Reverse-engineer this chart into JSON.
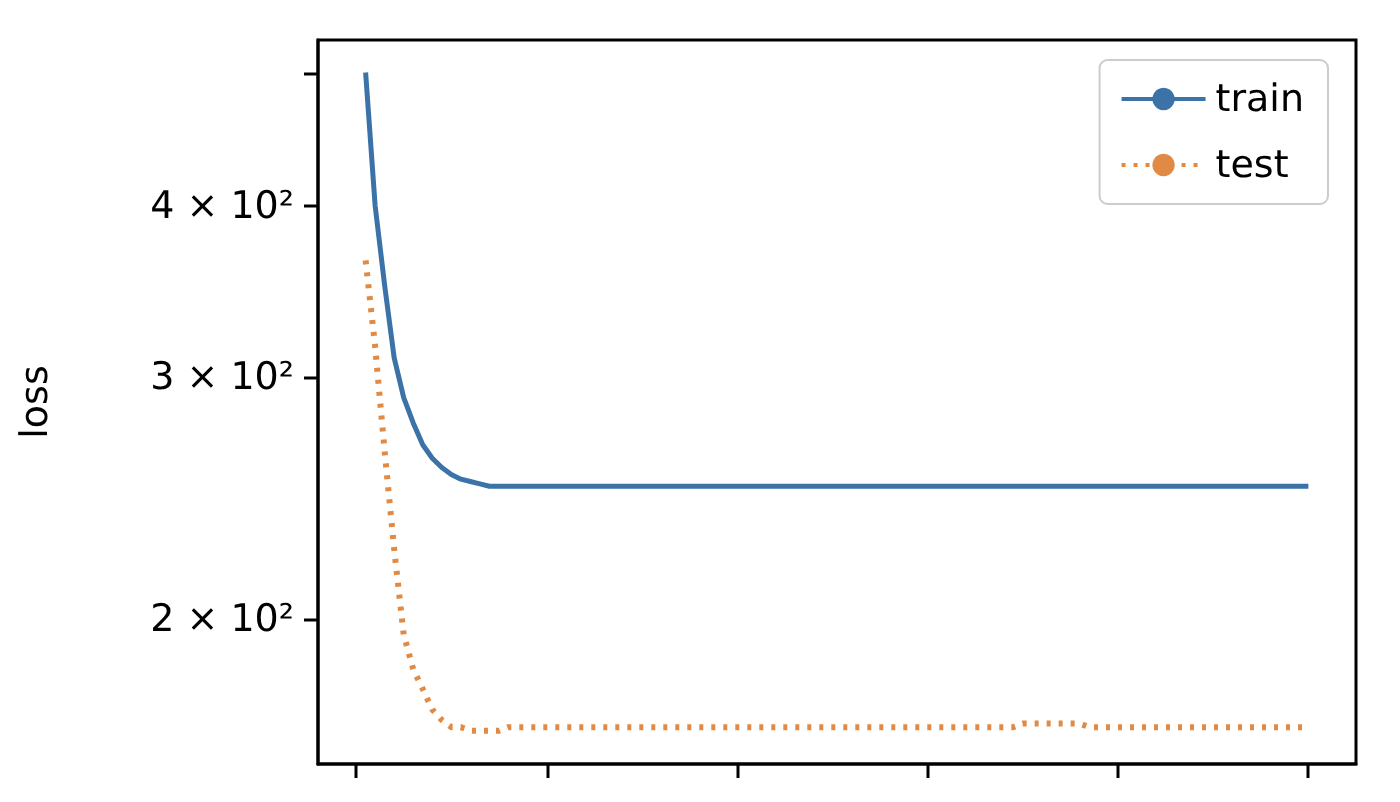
{
  "chart_data": {
    "type": "line",
    "ylabel": "loss",
    "categories": [
      null,
      null,
      null,
      null,
      null,
      null,
      null,
      null,
      null,
      null,
      null,
      null,
      null,
      null,
      null,
      null,
      null,
      null,
      null,
      null,
      null,
      null,
      null,
      null,
      null,
      null,
      null,
      null,
      null,
      null,
      null,
      null,
      null,
      null,
      null,
      null,
      null,
      null,
      null,
      null,
      null,
      null,
      null,
      null,
      null,
      null,
      null,
      null,
      null,
      null,
      null,
      null,
      null,
      null,
      null,
      null,
      null,
      null,
      null,
      null,
      null,
      null,
      null,
      null,
      null,
      null,
      null,
      null,
      null,
      null,
      null,
      null,
      null,
      null,
      null,
      null,
      null,
      null,
      null,
      null,
      null,
      null,
      null,
      null,
      null,
      null,
      null,
      null,
      null,
      null,
      null,
      null,
      null,
      null,
      null,
      null,
      null,
      null,
      null,
      null,
      null,
      null,
      null,
      null,
      null,
      null,
      null,
      null,
      null,
      null
    ],
    "series": [
      {
        "name": "train",
        "color": "#3b72a8",
        "line_style": "solid",
        "values": [
          null,
          null,
          null,
          null,
          null,
          500,
          400,
          350,
          310,
          290,
          278,
          268,
          262,
          258,
          255,
          253,
          252,
          251,
          250,
          250,
          250,
          250,
          250,
          250,
          250,
          250,
          250,
          250,
          250,
          250,
          250,
          250,
          250,
          250,
          250,
          250,
          250,
          250,
          250,
          250,
          250,
          250,
          250,
          250,
          250,
          250,
          250,
          250,
          250,
          250,
          250,
          250,
          250,
          250,
          250,
          250,
          250,
          250,
          250,
          250,
          250,
          250,
          250,
          250,
          250,
          250,
          250,
          250,
          250,
          250,
          250,
          250,
          250,
          250,
          250,
          250,
          250,
          250,
          250,
          250,
          250,
          250,
          250,
          250,
          250,
          250,
          250,
          250,
          250,
          250,
          250,
          250,
          250,
          250,
          250,
          250,
          250,
          250,
          250,
          250,
          250,
          250,
          250,
          250,
          250,
          null,
          null,
          null,
          null,
          null
        ]
      },
      {
        "name": "test",
        "color": "#e08a45",
        "line_style": "dotted",
        "values": [
          null,
          null,
          null,
          null,
          null,
          365,
          316,
          265,
          225,
          195,
          184,
          178,
          172,
          169,
          167,
          167,
          166,
          166,
          166,
          166,
          167,
          167,
          167,
          167,
          167,
          167,
          167,
          167,
          167,
          167,
          167,
          167,
          167,
          167,
          167,
          167,
          167,
          167,
          167,
          167,
          167,
          167,
          167,
          167,
          167,
          167,
          167,
          167,
          167,
          167,
          167,
          167,
          167,
          167,
          167,
          167,
          167,
          167,
          167,
          167,
          167,
          167,
          167,
          167,
          167,
          167,
          167,
          167,
          167,
          167,
          167,
          167,
          167,
          167,
          168,
          168,
          168,
          168,
          168,
          168,
          168,
          167,
          167,
          167,
          167,
          167,
          167,
          167,
          167,
          167,
          167,
          167,
          167,
          167,
          167,
          167,
          167,
          167,
          167,
          167,
          167,
          167,
          167,
          167,
          167,
          null,
          null,
          null,
          null,
          null
        ]
      }
    ],
    "ylim": [
      157,
      528
    ],
    "log": true,
    "yticks": [
      {
        "value": 200,
        "label": "2 × 10²"
      },
      {
        "value": 300,
        "label": "3 × 10²"
      },
      {
        "value": 400,
        "label": "4 × 10²"
      },
      {
        "value": 500,
        "label": null
      }
    ],
    "grid": false,
    "legend": "top right",
    "tick_labels": "y"
  }
}
